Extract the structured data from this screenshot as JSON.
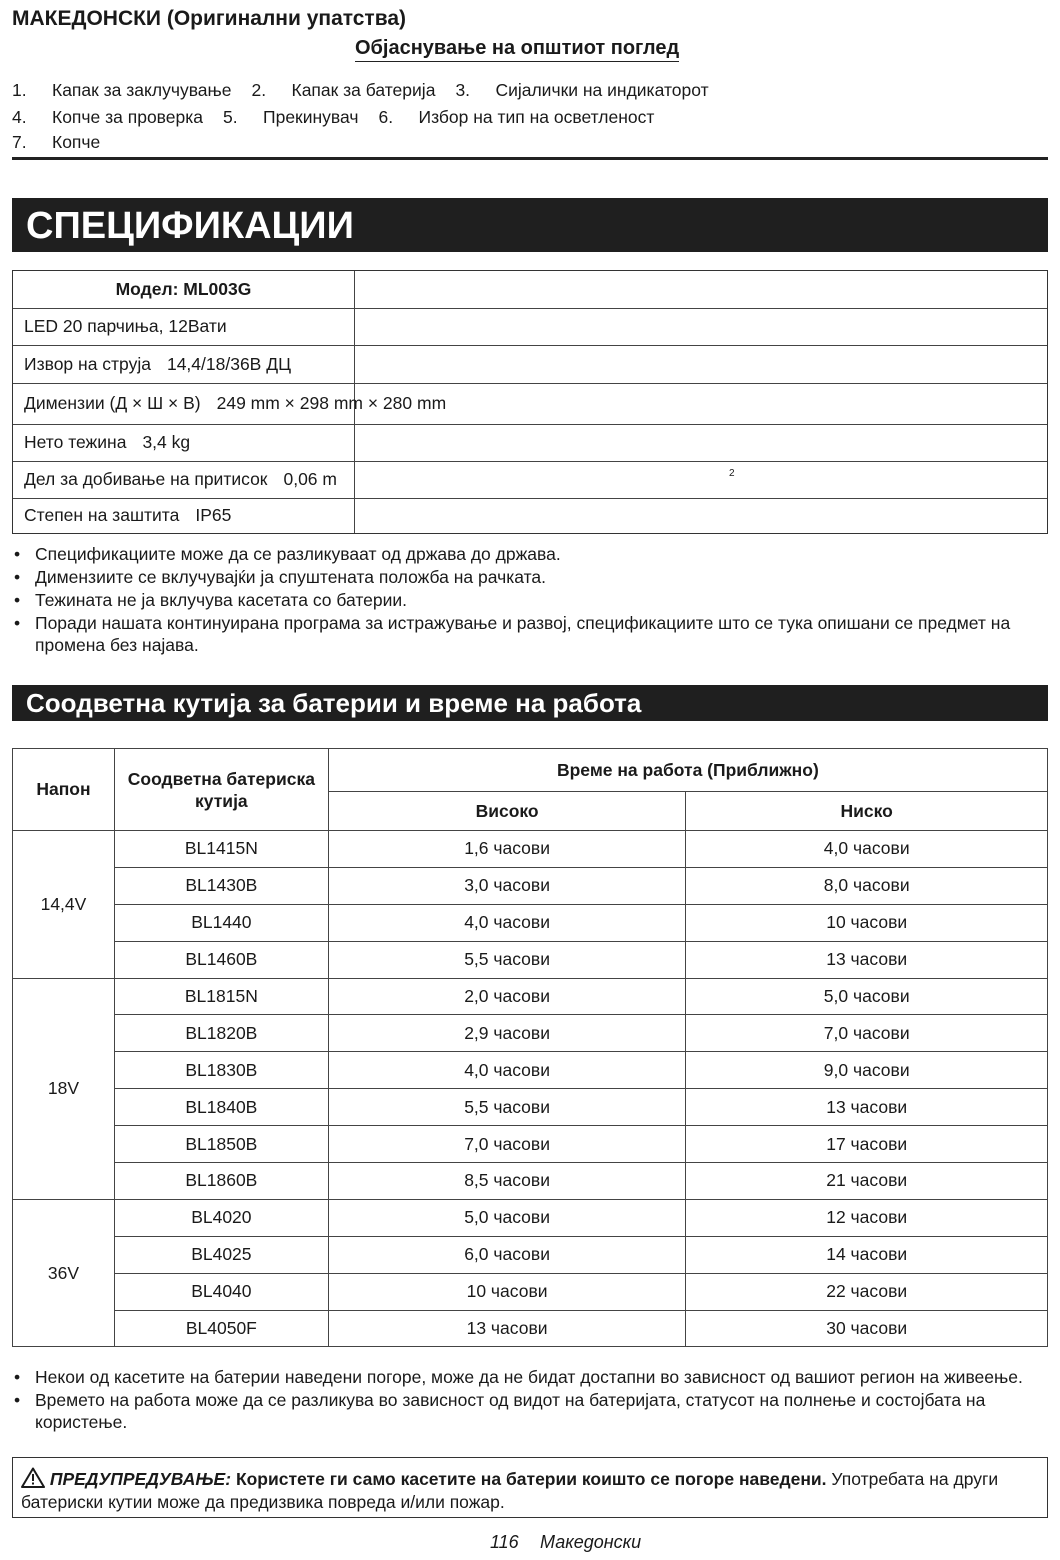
{
  "header": {
    "language": "МАКЕДОНСКИ (Оригинални упатства)",
    "subtitle": "Објаснување на општиот поглед"
  },
  "overview": [
    [
      {
        "number": "1.",
        "label": "Капак за заклучување"
      },
      {
        "number": "2.",
        "label": "Капак за батерија"
      },
      {
        "number": "3.",
        "label": "Сијалички на индикаторот"
      }
    ],
    [
      {
        "number": "4.",
        "label": "Копче за проверка"
      },
      {
        "number": "5.",
        "label": "Прекинувач"
      },
      {
        "number": "6.",
        "label": "Избор на тип на осветленост"
      }
    ],
    [
      {
        "number": "7.",
        "label": "Копче"
      }
    ]
  ],
  "specs": {
    "title": "СПЕЦИФИКАЦИИ",
    "model": "Модел: ML003G",
    "rows": [
      {
        "label": "LED 20 парчиња, 12Вати"
      },
      {
        "label": "Извор на струја",
        "value": "14,4/18/36В ДЦ"
      },
      {
        "label": "Димензии (Д × Ш × В)",
        "value": "249 mm × 298 mm × 280 mm"
      },
      {
        "label": "Нето тежина",
        "value": "3,4 kg"
      },
      {
        "label": "Дел за добивање на притисок",
        "value": "0,06 m",
        "superscript": "2"
      },
      {
        "label": "Степен на заштита",
        "value": "IP65"
      }
    ],
    "notes": [
      "Спецификациите може да се разликуваат од држава до држава.",
      "Димензиите се вклучувајќи ја спуштената положба на рачката.",
      "Тежината не ја вклучува касетата со батерии.",
      "Поради нашата континуирана програма за истражување и развој, спецификациите што се тука опишани се предмет на промена без најава."
    ]
  },
  "batteries": {
    "title": "Соодветна кутија за батерии и време на работа",
    "headers": {
      "voltage": "Напон",
      "battery": "Соодветна батериска кутија",
      "time": "Време на работа (Приближно)",
      "high": "Високо",
      "low": "Ниско"
    },
    "groups": [
      {
        "voltage": "14,4V",
        "rows": [
          [
            "BL1415N",
            "1,6 часови",
            "4,0 часови"
          ],
          [
            "BL1430B",
            "3,0 часови",
            "8,0 часови"
          ],
          [
            "BL1440",
            "4,0 часови",
            "10 часови"
          ],
          [
            "BL1460B",
            "5,5 часови",
            "13 часови"
          ]
        ]
      },
      {
        "voltage": "18V",
        "rows": [
          [
            "BL1815N",
            "2,0 часови",
            "5,0 часови"
          ],
          [
            "BL1820B",
            "2,9 часови",
            "7,0 часови"
          ],
          [
            "BL1830B",
            "4,0 часови",
            "9,0 часови"
          ],
          [
            "BL1840B",
            "5,5 часови",
            "13 часови"
          ],
          [
            "BL1850B",
            "7,0 часови",
            "17 часови"
          ],
          [
            "BL1860B",
            "8,5 часови",
            "21 часови"
          ]
        ]
      },
      {
        "voltage": "36V",
        "rows": [
          [
            "BL4020",
            "5,0 часови",
            "12 часови"
          ],
          [
            "BL4025",
            "6,0 часови",
            "14 часови"
          ],
          [
            "BL4040",
            "10 часови",
            "22 часови"
          ],
          [
            "BL4050F",
            "13 часови",
            "30 часови"
          ]
        ]
      }
    ],
    "notes": [
      "Некои од касетите на батерии наведени погоре, може да не бидат достапни во зависност од вашиот регион на живеење.",
      "Времето на работа може да се разликува во зависност од видот на батеријата, статусот на полнење и состојбата на користење."
    ]
  },
  "warning": {
    "label": "ПРЕДУПРЕДУВАЊЕ:",
    "emphasis": "Користете ги само касетите на батерии коишто се погоре наведени.",
    "text": "Употребата на други батериски кутии може да предизвика повреда и/или пожар."
  },
  "footer": {
    "page": "116",
    "language": "Македонски"
  }
}
